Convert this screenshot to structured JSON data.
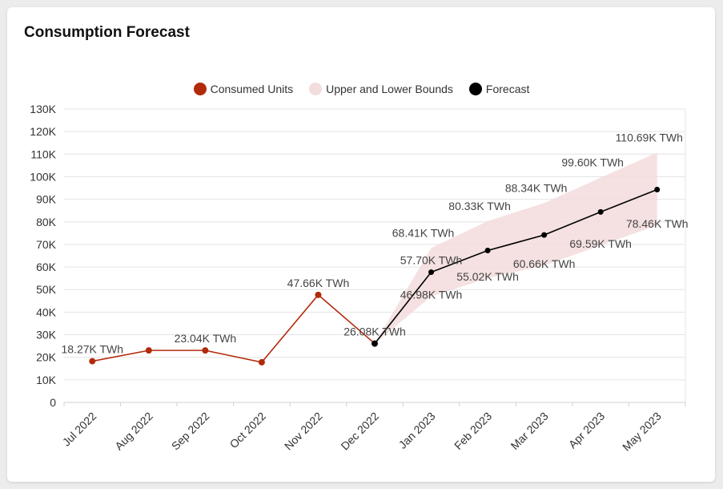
{
  "title": "Consumption Forecast",
  "legend": [
    {
      "label": "Consumed Units",
      "color": "#b22a0a"
    },
    {
      "label": "Upper and Lower Bounds",
      "color": "#f3dcdc"
    },
    {
      "label": "Forecast",
      "color": "#000000"
    }
  ],
  "chart_data": {
    "type": "line",
    "title": "Consumption Forecast",
    "categories": [
      "Jul 2022",
      "Aug 2022",
      "Sep 2022",
      "Oct 2022",
      "Nov 2022",
      "Dec 2022",
      "Jan 2023",
      "Feb 2023",
      "Mar 2023",
      "Apr 2023",
      "May 2023"
    ],
    "y_ticks": [
      "0",
      "10K",
      "20K",
      "30K",
      "40K",
      "50K",
      "60K",
      "70K",
      "80K",
      "90K",
      "100K",
      "110K",
      "120K",
      "130K"
    ],
    "ylim": [
      0,
      130000
    ],
    "series": [
      {
        "name": "Consumed Units",
        "color": "#b22a0a",
        "values": [
          18270,
          23040,
          23040,
          17800,
          47660,
          26080,
          null,
          null,
          null,
          null,
          null
        ],
        "labels": [
          "18.27K TWh",
          "",
          "23.04K TWh",
          "",
          "47.66K TWh",
          "26.08K TWh",
          "",
          "",
          "",
          "",
          ""
        ]
      },
      {
        "name": "Forecast",
        "color": "#000000",
        "values": [
          null,
          null,
          null,
          null,
          null,
          26080,
          57700,
          67300,
          74200,
          84400,
          94300
        ],
        "labels": [
          "",
          "",
          "",
          "",
          "",
          "",
          "57.70K TWh",
          "",
          "",
          "",
          ""
        ]
      },
      {
        "name": "Upper and Lower Bounds",
        "color": "#f3dcdc",
        "upper": [
          null,
          null,
          null,
          null,
          null,
          26080,
          68410,
          80330,
          88340,
          99600,
          110690
        ],
        "lower": [
          null,
          null,
          null,
          null,
          null,
          26080,
          46980,
          55020,
          60660,
          69590,
          78460
        ],
        "upper_labels": [
          "",
          "",
          "",
          "",
          "",
          "",
          "68.41K TWh",
          "80.33K TWh",
          "88.34K TWh",
          "99.60K TWh",
          "110.69K TWh"
        ],
        "lower_labels": [
          "",
          "",
          "",
          "",
          "",
          "",
          "46.98K TWh",
          "55.02K TWh",
          "60.66K TWh",
          "69.59K TWh",
          "78.46K TWh"
        ]
      }
    ]
  }
}
